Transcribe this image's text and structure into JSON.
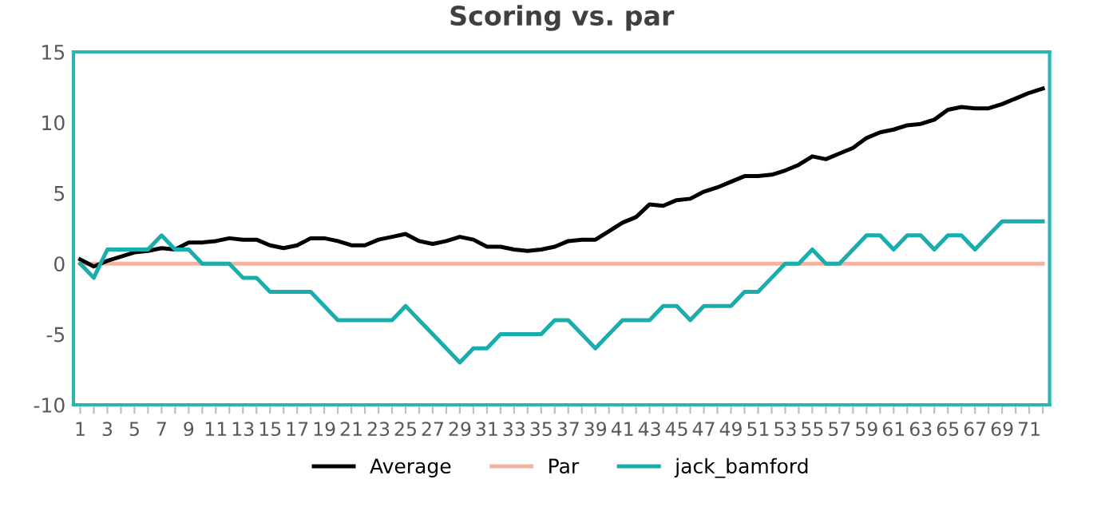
{
  "chart_data": {
    "type": "line",
    "title": "Scoring vs. par",
    "categories": [
      "1",
      null,
      "3",
      null,
      "5",
      null,
      "7",
      null,
      "9",
      null,
      "11",
      null,
      "13",
      null,
      "15",
      null,
      "17",
      null,
      "19",
      null,
      "21",
      null,
      "23",
      null,
      "25",
      null,
      "27",
      null,
      "29",
      null,
      "31",
      null,
      "33",
      null,
      "35",
      null,
      "37",
      null,
      "39",
      null,
      "41",
      null,
      "43",
      null,
      "45",
      null,
      "47",
      null,
      "49",
      null,
      "51",
      null,
      "53",
      null,
      "55",
      null,
      "57",
      null,
      "59",
      null,
      "61",
      null,
      "63",
      null,
      "65",
      null,
      "67",
      null,
      "69",
      null,
      "71",
      null
    ],
    "series": [
      {
        "name": "Average",
        "color": "#000000",
        "values": [
          0.3,
          -0.2,
          0.2,
          0.5,
          0.8,
          0.9,
          1.1,
          1.0,
          1.5,
          1.5,
          1.6,
          1.8,
          1.7,
          1.7,
          1.3,
          1.1,
          1.3,
          1.8,
          1.8,
          1.6,
          1.3,
          1.3,
          1.7,
          1.9,
          2.1,
          1.6,
          1.4,
          1.6,
          1.9,
          1.7,
          1.2,
          1.2,
          1.0,
          0.9,
          1.0,
          1.2,
          1.6,
          1.7,
          1.7,
          2.3,
          2.9,
          3.3,
          4.2,
          4.1,
          4.5,
          4.6,
          5.1,
          5.4,
          5.8,
          6.2,
          6.2,
          6.3,
          6.6,
          7.0,
          7.6,
          7.4,
          7.8,
          8.2,
          8.9,
          9.3,
          9.5,
          9.8,
          9.9,
          10.2,
          10.9,
          11.1,
          11.0,
          11.0,
          11.3,
          11.7,
          12.1,
          12.4
        ]
      },
      {
        "name": "Par",
        "color": "#f4b4a4",
        "values": [
          0,
          0,
          0,
          0,
          0,
          0,
          0,
          0,
          0,
          0,
          0,
          0,
          0,
          0,
          0,
          0,
          0,
          0,
          0,
          0,
          0,
          0,
          0,
          0,
          0,
          0,
          0,
          0,
          0,
          0,
          0,
          0,
          0,
          0,
          0,
          0,
          0,
          0,
          0,
          0,
          0,
          0,
          0,
          0,
          0,
          0,
          0,
          0,
          0,
          0,
          0,
          0,
          0,
          0,
          0,
          0,
          0,
          0,
          0,
          0,
          0,
          0,
          0,
          0,
          0,
          0,
          0,
          0,
          0,
          0,
          0,
          0
        ]
      },
      {
        "name": "jack_bamford",
        "color": "#1aadab",
        "values": [
          0,
          -1,
          1,
          1,
          1,
          1,
          2,
          1,
          1,
          0,
          0,
          0,
          -1,
          -1,
          -2,
          -2,
          -2,
          -2,
          -3,
          -4,
          -4,
          -4,
          -4,
          -4,
          -3,
          -4,
          -5,
          -6,
          -7,
          -6,
          -6,
          -5,
          -5,
          -5,
          -5,
          -4,
          -4,
          -5,
          -6,
          -5,
          -4,
          -4,
          -4,
          -3,
          -3,
          -4,
          -3,
          -3,
          -3,
          -2,
          -2,
          -1,
          0,
          0,
          1,
          0,
          0,
          1,
          2,
          2,
          1,
          2,
          2,
          1,
          2,
          2,
          1,
          2,
          3,
          3,
          3,
          3
        ]
      }
    ],
    "ylim": [
      -10,
      15
    ],
    "yticks": [
      -10,
      -5,
      0,
      5,
      10,
      15
    ],
    "grid": false,
    "legend": "bottom",
    "marker": "none",
    "line_style": "solid"
  }
}
